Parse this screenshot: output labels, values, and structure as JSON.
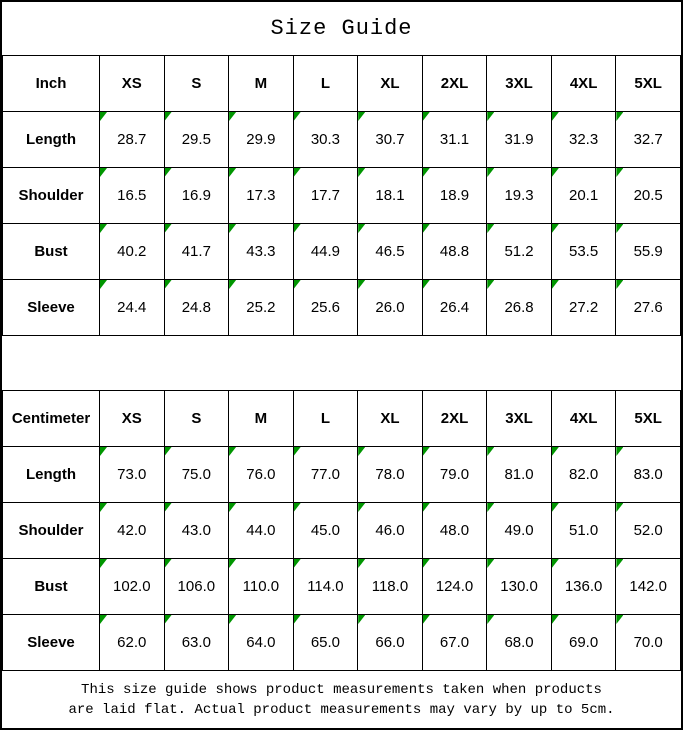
{
  "title": "Size Guide",
  "colors": {
    "background": "#ffffff",
    "border": "#000000",
    "text": "#000000",
    "cell_flag_green": "#009600"
  },
  "chart_data": {
    "type": "table",
    "title": "Size Guide",
    "footnote": "This size guide shows product measurements taken when products are laid flat. Actual product measurements may vary by up to 5cm.",
    "tables": [
      {
        "unit": "Inch",
        "header": [
          "Inch",
          "XS",
          "S",
          "M",
          "L",
          "XL",
          "2XL",
          "3XL",
          "4XL",
          "5XL"
        ],
        "rows": [
          {
            "label": "Length",
            "values": [
              "28.7",
              "29.5",
              "29.9",
              "30.3",
              "30.7",
              "31.1",
              "31.9",
              "32.3",
              "32.7"
            ]
          },
          {
            "label": "Shoulder",
            "values": [
              "16.5",
              "16.9",
              "17.3",
              "17.7",
              "18.1",
              "18.9",
              "19.3",
              "20.1",
              "20.5"
            ]
          },
          {
            "label": "Bust",
            "values": [
              "40.2",
              "41.7",
              "43.3",
              "44.9",
              "46.5",
              "48.8",
              "51.2",
              "53.5",
              "55.9"
            ]
          },
          {
            "label": "Sleeve",
            "values": [
              "24.4",
              "24.8",
              "25.2",
              "25.6",
              "26.0",
              "26.4",
              "26.8",
              "27.2",
              "27.6"
            ]
          }
        ]
      },
      {
        "unit": "Centimeter",
        "header": [
          "Centimeter",
          "XS",
          "S",
          "M",
          "L",
          "XL",
          "2XL",
          "3XL",
          "4XL",
          "5XL"
        ],
        "rows": [
          {
            "label": "Length",
            "values": [
              "73.0",
              "75.0",
              "76.0",
              "77.0",
              "78.0",
              "79.0",
              "81.0",
              "82.0",
              "83.0"
            ]
          },
          {
            "label": "Shoulder",
            "values": [
              "42.0",
              "43.0",
              "44.0",
              "45.0",
              "46.0",
              "48.0",
              "49.0",
              "51.0",
              "52.0"
            ]
          },
          {
            "label": "Bust",
            "values": [
              "102.0",
              "106.0",
              "110.0",
              "114.0",
              "118.0",
              "124.0",
              "130.0",
              "136.0",
              "142.0"
            ]
          },
          {
            "label": "Sleeve",
            "values": [
              "62.0",
              "63.0",
              "64.0",
              "65.0",
              "66.0",
              "67.0",
              "68.0",
              "69.0",
              "70.0"
            ]
          }
        ]
      }
    ]
  },
  "footer": {
    "line1": "This size guide shows product measurements taken when products",
    "line2": "are laid flat. Actual product measurements may vary by up to 5cm."
  }
}
